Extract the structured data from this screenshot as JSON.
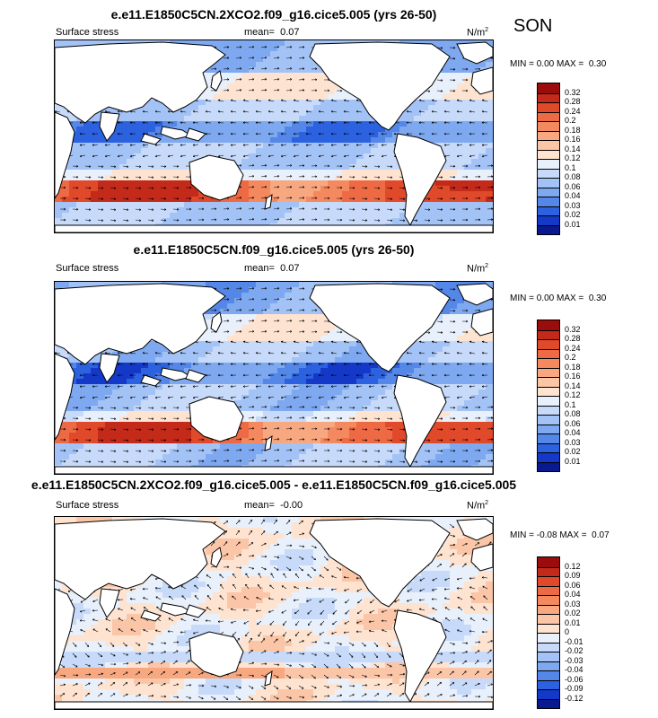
{
  "season": "SON",
  "panels": [
    {
      "title": "e.e11.E1850C5CN.2XCO2.f09_g16.cice5.005 (yrs 26-50)",
      "left_label": "Surface stress",
      "mean_label": "mean=",
      "mean_value": "0.07",
      "units": "N/m",
      "units_sup": "2",
      "min_label": "MIN =",
      "min_value": "0.00",
      "max_label": "MAX =",
      "max_value": "0.30",
      "kind": "abs",
      "colorbar": {
        "labels": [
          "0.32",
          "0.28",
          "0.24",
          "0.2",
          "0.18",
          "0.16",
          "0.14",
          "0.12",
          "0.1",
          "0.08",
          "0.06",
          "0.04",
          "0.03",
          "0.02",
          "0.01"
        ],
        "colors": [
          "#9b0c0c",
          "#c42a1a",
          "#e0492a",
          "#ee6a45",
          "#f4895f",
          "#f8a880",
          "#fbc6a8",
          "#fde3d0",
          "#e8f0fc",
          "#c7dafa",
          "#a3c3f7",
          "#7ea8f0",
          "#5587e8",
          "#2c62df",
          "#1439c8",
          "#081a8e"
        ]
      }
    },
    {
      "title": "e.e11.E1850C5CN.f09_g16.cice5.005 (yrs 26-50)",
      "left_label": "Surface stress",
      "mean_label": "mean=",
      "mean_value": "0.07",
      "units": "N/m",
      "units_sup": "2",
      "min_label": "MIN =",
      "min_value": "0.00",
      "max_label": "MAX =",
      "max_value": "0.30",
      "kind": "abs",
      "colorbar": {
        "labels": [
          "0.32",
          "0.28",
          "0.24",
          "0.2",
          "0.18",
          "0.16",
          "0.14",
          "0.12",
          "0.1",
          "0.08",
          "0.06",
          "0.04",
          "0.03",
          "0.02",
          "0.01"
        ],
        "colors": [
          "#9b0c0c",
          "#c42a1a",
          "#e0492a",
          "#ee6a45",
          "#f4895f",
          "#f8a880",
          "#fbc6a8",
          "#fde3d0",
          "#e8f0fc",
          "#c7dafa",
          "#a3c3f7",
          "#7ea8f0",
          "#5587e8",
          "#2c62df",
          "#1439c8",
          "#081a8e"
        ]
      }
    },
    {
      "title": "e.e11.E1850C5CN.2XCO2.f09_g16.cice5.005 - e.e11.E1850C5CN.f09_g16.cice5.005",
      "left_label": "Surface stress",
      "mean_label": "mean=",
      "mean_value": "-0.00",
      "units": "N/m",
      "units_sup": "2",
      "min_label": "MIN =",
      "min_value": "-0.08",
      "max_label": "MAX =",
      "max_value": "0.07",
      "kind": "diff",
      "colorbar": {
        "labels": [
          "0.12",
          "0.09",
          "0.06",
          "0.04",
          "0.03",
          "0.02",
          "0.01",
          "0",
          "-0.01",
          "-0.02",
          "-0.03",
          "-0.04",
          "-0.06",
          "-0.09",
          "-0.12"
        ],
        "colors": [
          "#9b0c0c",
          "#c42a1a",
          "#e0492a",
          "#ee6a45",
          "#f4895f",
          "#f8a880",
          "#fbc6a8",
          "#fde3d0",
          "#e8f0fc",
          "#c7dafa",
          "#a3c3f7",
          "#7ea8f0",
          "#5587e8",
          "#2c62df",
          "#1439c8",
          "#081a8e"
        ]
      }
    }
  ]
}
